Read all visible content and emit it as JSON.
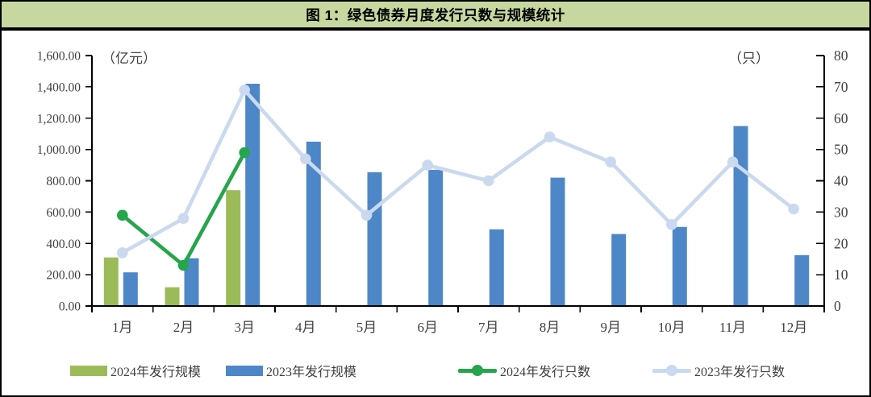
{
  "title": "图 1：绿色债券月度发行只数与规模统计",
  "style_colors": {
    "header_bg": "#c6d89f",
    "border": "#000000",
    "axis_text": "#3f3f3f",
    "bar_2024": "#9bbb59",
    "bar_2023": "#4e87c7",
    "line_2024": "#25a54c",
    "line_2023": "#cbd9ef"
  },
  "chart_data": {
    "type": "combo-bar-line",
    "title": "图 1：绿色债券月度发行只数与规模统计",
    "grid": false,
    "legend_position": "bottom",
    "categories": [
      "1月",
      "2月",
      "3月",
      "4月",
      "5月",
      "6月",
      "7月",
      "8月",
      "9月",
      "10月",
      "11月",
      "12月"
    ],
    "left_axis": {
      "label": "（亿元）",
      "min": 0,
      "max": 1600,
      "step": 200,
      "tick_labels": [
        "0.00",
        "200.00",
        "400.00",
        "600.00",
        "800.00",
        "1,000.00",
        "1,200.00",
        "1,400.00",
        "1,600.00"
      ]
    },
    "right_axis": {
      "label": "（只）",
      "min": 0,
      "max": 80,
      "step": 10,
      "tick_labels": [
        "0",
        "10",
        "20",
        "30",
        "40",
        "50",
        "60",
        "70",
        "80"
      ]
    },
    "series": [
      {
        "name": "2024年发行规模",
        "type": "bar",
        "axis": "left",
        "color": "#9bbb59",
        "values": [
          310,
          120,
          740,
          null,
          null,
          null,
          null,
          null,
          null,
          null,
          null,
          null
        ]
      },
      {
        "name": "2023年发行规模",
        "type": "bar",
        "axis": "left",
        "color": "#4e87c7",
        "values": [
          215,
          305,
          1420,
          1050,
          855,
          870,
          490,
          820,
          460,
          505,
          1150,
          325
        ]
      },
      {
        "name": "2024年发行只数",
        "type": "line",
        "axis": "right",
        "color": "#25a54c",
        "values": [
          29,
          13,
          49,
          null,
          null,
          null,
          null,
          null,
          null,
          null,
          null,
          null
        ]
      },
      {
        "name": "2023年发行只数",
        "type": "line",
        "axis": "right",
        "color": "#cbd9ef",
        "values": [
          17,
          28,
          69,
          47,
          29,
          45,
          40,
          54,
          46,
          26,
          46,
          31
        ]
      }
    ]
  }
}
